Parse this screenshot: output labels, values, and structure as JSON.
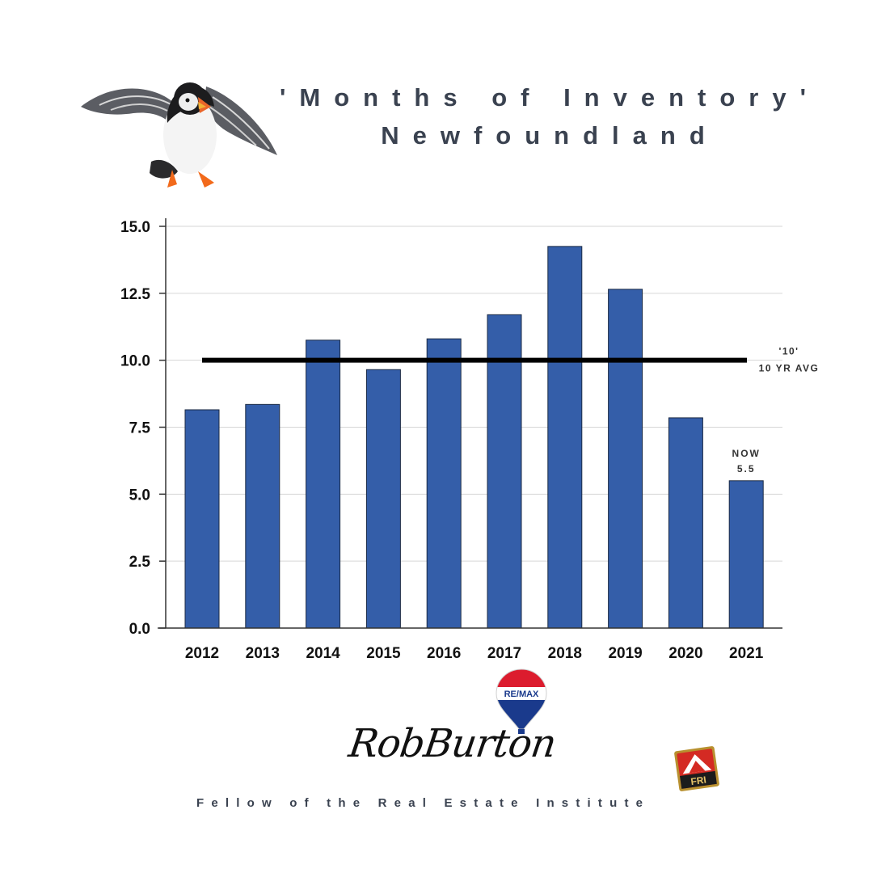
{
  "title": {
    "line1": "'Months of Inventory'",
    "line2": "Newfoundland"
  },
  "chart_data": {
    "type": "bar",
    "categories": [
      "2012",
      "2013",
      "2014",
      "2015",
      "2016",
      "2017",
      "2018",
      "2019",
      "2020",
      "2021"
    ],
    "values": [
      8.15,
      8.35,
      10.75,
      9.65,
      10.8,
      11.7,
      14.25,
      12.65,
      7.85,
      5.5
    ],
    "ylim": [
      0,
      15
    ],
    "yticks": [
      "0.0",
      "2.5",
      "5.0",
      "7.5",
      "10.0",
      "12.5",
      "15.0"
    ],
    "grid": true,
    "bar_color": "#345ea9",
    "reference_line": {
      "value": 10,
      "label_line1": "'10'",
      "label_line2": "10 YR AVG",
      "color": "#000000"
    },
    "annotation": {
      "category": "2021",
      "line1": "NOW",
      "line2": "5.5"
    }
  },
  "branding": {
    "balloon_logo_text": "RE/MAX",
    "signature": "RobBurton",
    "footer": "Fellow of the Real Estate Institute",
    "pin_text": "FRI"
  },
  "icons": [
    "puffin-image",
    "remax-balloon-icon",
    "fri-pin-icon"
  ]
}
